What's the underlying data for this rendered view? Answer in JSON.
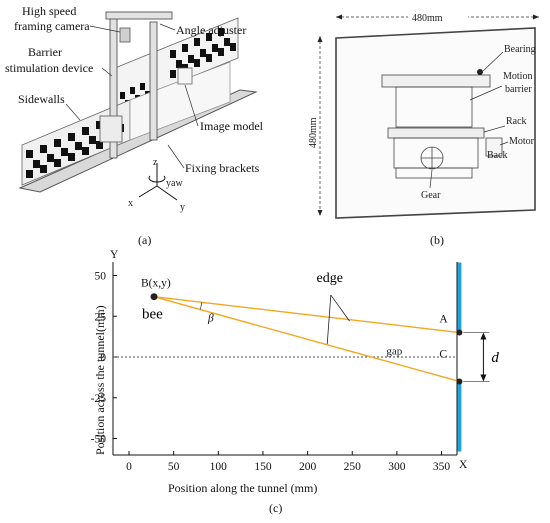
{
  "panel_a": {
    "labels": {
      "camera": "High speed",
      "camera2": "framing camera",
      "angle": "Angle adjuster",
      "barrier": "Barrier",
      "barrier2": "stimulation device",
      "sidewalls": "Sidewalls",
      "image_model": "Image model",
      "fixing": "Fixing brackets",
      "z": "z",
      "yaw": "yaw",
      "x": "x",
      "y": "y"
    },
    "caption": "(a)"
  },
  "panel_b": {
    "width_label": "480mm",
    "height_label": "480mm",
    "labels": {
      "bearing": "Bearing",
      "motion": "Motion",
      "motion2": "barrier",
      "rack": "Rack",
      "motor": "Motor",
      "back": "Back",
      "gear": "Gear"
    },
    "caption": "(b)"
  },
  "panel_c": {
    "caption": "(c)",
    "annotations": {
      "point_b": "B(x,y)",
      "bee": "bee",
      "edge": "edge",
      "beta": "β",
      "point_a": "A",
      "point_c": "C",
      "gap": "gap",
      "d": "d",
      "axis_y": "Y",
      "axis_x": "X"
    },
    "colors": {
      "rays": "#f5a623",
      "wall": "#1fa3dc",
      "points": "#222222"
    }
  },
  "chart_data": {
    "type": "line",
    "title": "",
    "xlabel": "Position along the tunnel (mm)",
    "ylabel": "Position across the tunnel(mm)",
    "xlim": [
      0,
      400
    ],
    "ylim": [
      -60,
      60
    ],
    "xticks": [
      "0",
      "50",
      "100",
      "150",
      "200",
      "250",
      "300",
      "350"
    ],
    "yticks": [
      "50",
      "25",
      "0",
      "-25",
      "-50"
    ],
    "xtick_values": [
      0,
      50,
      100,
      150,
      200,
      250,
      300,
      350
    ],
    "ytick_values": [
      50,
      25,
      0,
      -25,
      -50
    ],
    "points": {
      "B": [
        28,
        37
      ],
      "A": [
        370,
        15
      ],
      "C": [
        370,
        -15
      ]
    },
    "series": [
      {
        "values": [
          [
            28,
            37
          ],
          [
            370,
            15
          ]
        ]
      },
      {
        "values": [
          [
            28,
            37
          ],
          [
            370,
            -15
          ]
        ]
      }
    ],
    "wall_x": 370,
    "wall_segments": [
      [
        15,
        58
      ],
      [
        -58,
        -15
      ]
    ],
    "centerline_y": 0,
    "grid": false
  }
}
